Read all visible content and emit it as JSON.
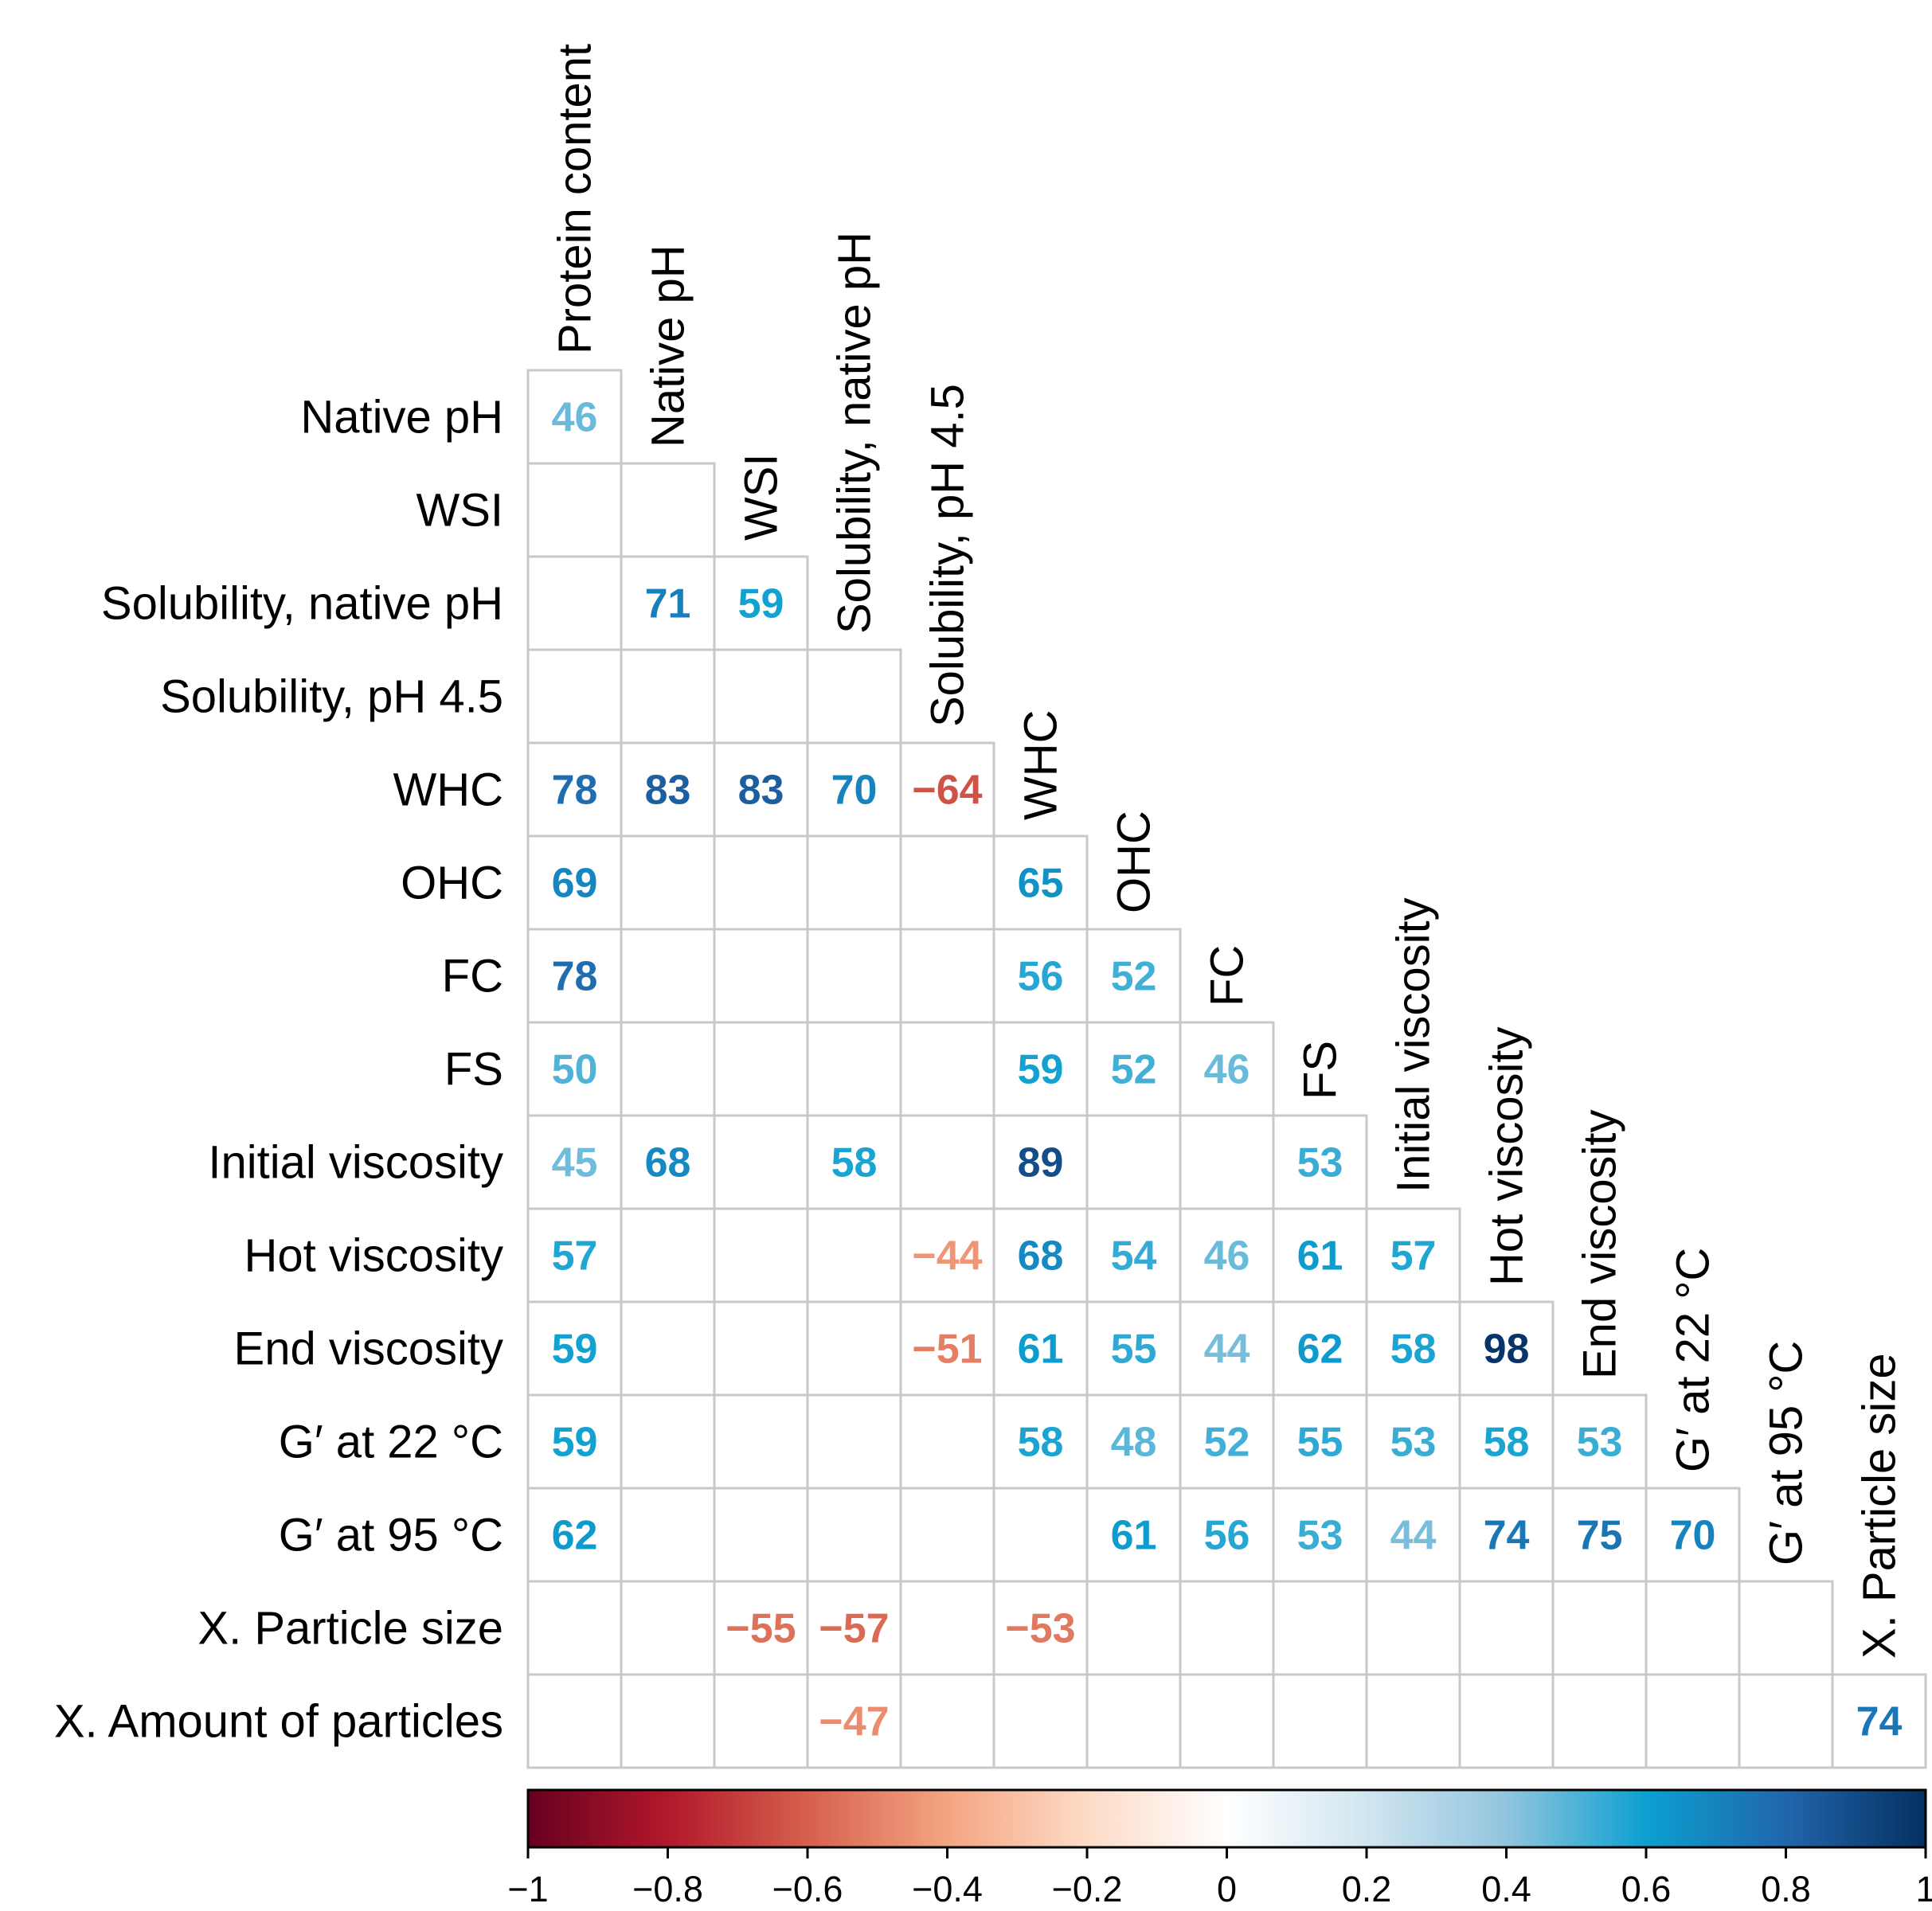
{
  "chart_data": {
    "type": "heatmap",
    "title": "",
    "variables": [
      "Protein content",
      "Native pH",
      "WSI",
      "Solubility, native pH",
      "Solubility, pH 4.5",
      "WHC",
      "OHC",
      "FC",
      "FS",
      "Initial viscosity",
      "Hot viscosity",
      "End viscosity",
      "G′ at 22 °C",
      "G′ at 95 °C",
      "X. Particle size",
      "X. Amount of particles"
    ],
    "cells": [
      {
        "row": "Native pH",
        "col": "Protein content",
        "value": 46
      },
      {
        "row": "Solubility, native pH",
        "col": "Native pH",
        "value": 71
      },
      {
        "row": "Solubility, native pH",
        "col": "WSI",
        "value": 59
      },
      {
        "row": "WHC",
        "col": "Protein content",
        "value": 78
      },
      {
        "row": "WHC",
        "col": "Native pH",
        "value": 83
      },
      {
        "row": "WHC",
        "col": "WSI",
        "value": 83
      },
      {
        "row": "WHC",
        "col": "Solubility, native pH",
        "value": 70
      },
      {
        "row": "WHC",
        "col": "Solubility, pH 4.5",
        "value": -64
      },
      {
        "row": "OHC",
        "col": "Protein content",
        "value": 69
      },
      {
        "row": "OHC",
        "col": "WHC",
        "value": 65
      },
      {
        "row": "FC",
        "col": "Protein content",
        "value": 78
      },
      {
        "row": "FC",
        "col": "WHC",
        "value": 56
      },
      {
        "row": "FC",
        "col": "OHC",
        "value": 52
      },
      {
        "row": "FS",
        "col": "Protein content",
        "value": 50
      },
      {
        "row": "FS",
        "col": "WHC",
        "value": 59
      },
      {
        "row": "FS",
        "col": "OHC",
        "value": 52
      },
      {
        "row": "FS",
        "col": "FC",
        "value": 46
      },
      {
        "row": "Initial viscosity",
        "col": "Protein content",
        "value": 45
      },
      {
        "row": "Initial viscosity",
        "col": "Native pH",
        "value": 68
      },
      {
        "row": "Initial viscosity",
        "col": "Solubility, native pH",
        "value": 58
      },
      {
        "row": "Initial viscosity",
        "col": "WHC",
        "value": 89
      },
      {
        "row": "Initial viscosity",
        "col": "FS",
        "value": 53
      },
      {
        "row": "Hot viscosity",
        "col": "Protein content",
        "value": 57
      },
      {
        "row": "Hot viscosity",
        "col": "Solubility, pH 4.5",
        "value": -44
      },
      {
        "row": "Hot viscosity",
        "col": "WHC",
        "value": 68
      },
      {
        "row": "Hot viscosity",
        "col": "OHC",
        "value": 54
      },
      {
        "row": "Hot viscosity",
        "col": "FC",
        "value": 46
      },
      {
        "row": "Hot viscosity",
        "col": "FS",
        "value": 61
      },
      {
        "row": "Hot viscosity",
        "col": "Initial viscosity",
        "value": 57
      },
      {
        "row": "End viscosity",
        "col": "Protein content",
        "value": 59
      },
      {
        "row": "End viscosity",
        "col": "Solubility, pH 4.5",
        "value": -51
      },
      {
        "row": "End viscosity",
        "col": "WHC",
        "value": 61
      },
      {
        "row": "End viscosity",
        "col": "OHC",
        "value": 55
      },
      {
        "row": "End viscosity",
        "col": "FC",
        "value": 44
      },
      {
        "row": "End viscosity",
        "col": "FS",
        "value": 62
      },
      {
        "row": "End viscosity",
        "col": "Initial viscosity",
        "value": 58
      },
      {
        "row": "End viscosity",
        "col": "Hot viscosity",
        "value": 98
      },
      {
        "row": "G′ at 22 °C",
        "col": "Protein content",
        "value": 59
      },
      {
        "row": "G′ at 22 °C",
        "col": "WHC",
        "value": 58
      },
      {
        "row": "G′ at 22 °C",
        "col": "OHC",
        "value": 48
      },
      {
        "row": "G′ at 22 °C",
        "col": "FC",
        "value": 52
      },
      {
        "row": "G′ at 22 °C",
        "col": "FS",
        "value": 55
      },
      {
        "row": "G′ at 22 °C",
        "col": "Initial viscosity",
        "value": 53
      },
      {
        "row": "G′ at 22 °C",
        "col": "Hot viscosity",
        "value": 58
      },
      {
        "row": "G′ at 22 °C",
        "col": "End viscosity",
        "value": 53
      },
      {
        "row": "G′ at 95 °C",
        "col": "Protein content",
        "value": 62
      },
      {
        "row": "G′ at 95 °C",
        "col": "OHC",
        "value": 61
      },
      {
        "row": "G′ at 95 °C",
        "col": "FC",
        "value": 56
      },
      {
        "row": "G′ at 95 °C",
        "col": "FS",
        "value": 53
      },
      {
        "row": "G′ at 95 °C",
        "col": "Initial viscosity",
        "value": 44
      },
      {
        "row": "G′ at 95 °C",
        "col": "Hot viscosity",
        "value": 74
      },
      {
        "row": "G′ at 95 °C",
        "col": "End viscosity",
        "value": 75
      },
      {
        "row": "G′ at 95 °C",
        "col": "G′ at 22 °C",
        "value": 70
      },
      {
        "row": "X. Particle size",
        "col": "WSI",
        "value": -55
      },
      {
        "row": "X. Particle size",
        "col": "Solubility, native pH",
        "value": -57
      },
      {
        "row": "X. Particle size",
        "col": "WHC",
        "value": -53
      },
      {
        "row": "X. Amount of particles",
        "col": "Solubility, native pH",
        "value": -47
      },
      {
        "row": "X. Amount of particles",
        "col": "X. Particle size",
        "value": 74
      }
    ],
    "colorbar": {
      "range": [
        -1,
        1
      ],
      "ticks": [
        -1,
        -0.8,
        -0.6,
        -0.4,
        -0.2,
        0,
        0.2,
        0.4,
        0.6,
        0.8,
        1
      ],
      "tick_labels": [
        "−1",
        "−0.8",
        "−0.6",
        "−0.4",
        "−0.2",
        "0",
        "0.2",
        "0.4",
        "0.6",
        "0.8",
        "1"
      ],
      "colors": [
        "#67001f",
        "#b2182b",
        "#d6604d",
        "#f4a582",
        "#fddbc7",
        "#ffffff",
        "#d1e5f0",
        "#92c5de",
        "#0ba0d0",
        "#2166ac",
        "#053061"
      ]
    }
  }
}
